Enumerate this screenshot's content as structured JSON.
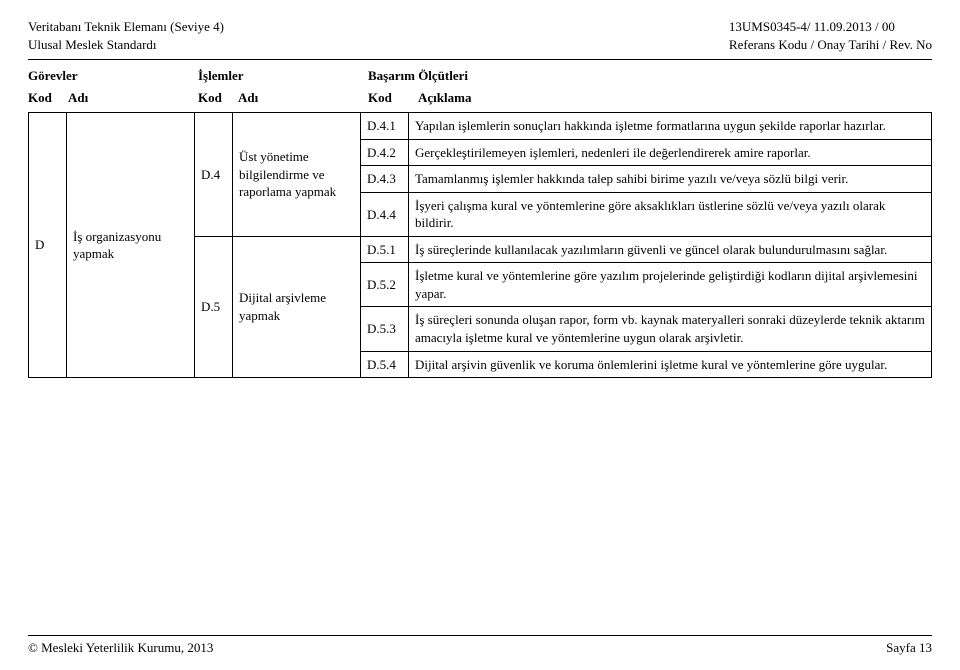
{
  "header": {
    "left_line1": "Veritabanı Teknik Elemanı (Seviye 4)",
    "left_line2": "Ulusal Meslek Standardı",
    "right_line1": "13UMS0345-4/ 11.09.2013    /  00",
    "right_line2": "Referans Kodu / Onay Tarihi / Rev. No"
  },
  "section_heads": {
    "gorevler": "Görevler",
    "islemler": "İşlemler",
    "basarim": "Başarım Ölçütleri"
  },
  "subheads": {
    "kod1": "Kod",
    "adi1": "Adı",
    "kod2": "Kod",
    "adi2": "Adı",
    "kod3": "Kod",
    "aciklama": "Açıklama"
  },
  "task": {
    "kod": "D",
    "adi": "İş organizasyonu yapmak"
  },
  "ops": [
    {
      "kod": "D.4",
      "adi": "Üst yönetime bilgilendirme ve raporlama yapmak"
    },
    {
      "kod": "D.5",
      "adi": "Dijital arşivleme yapmak"
    }
  ],
  "criteria": [
    {
      "kod": "D.4.1",
      "text": "Yapılan işlemlerin sonuçları hakkında işletme formatlarına uygun şekilde raporlar hazırlar."
    },
    {
      "kod": "D.4.2",
      "text": "Gerçekleştirilemeyen işlemleri, nedenleri ile değerlendirerek amire raporlar."
    },
    {
      "kod": "D.4.3",
      "text": "Tamamlanmış işlemler hakkında talep sahibi birime yazılı ve/veya sözlü bilgi verir."
    },
    {
      "kod": "D.4.4",
      "text": "İşyeri çalışma kural ve yöntemlerine göre aksaklıkları üstlerine sözlü ve/veya yazılı olarak bildirir."
    },
    {
      "kod": "D.5.1",
      "text": "İş süreçlerinde kullanılacak yazılımların güvenli ve güncel olarak bulundurulmasını sağlar."
    },
    {
      "kod": "D.5.2",
      "text": "İşletme kural ve yöntemlerine göre yazılım projelerinde geliştirdiği kodların dijital arşivlemesini yapar."
    },
    {
      "kod": "D.5.3",
      "text": "İş süreçleri sonunda oluşan rapor, form vb. kaynak materyalleri sonraki düzeylerde teknik aktarım amacıyla işletme kural ve yöntemlerine uygun olarak arşivletir."
    },
    {
      "kod": "D.5.4",
      "text": "Dijital arşivin güvenlik ve koruma önlemlerini işletme kural ve yöntemlerine göre uygular."
    }
  ],
  "footer": {
    "left": "© Mesleki Yeterlilik Kurumu, 2013",
    "right": "Sayfa 13"
  }
}
